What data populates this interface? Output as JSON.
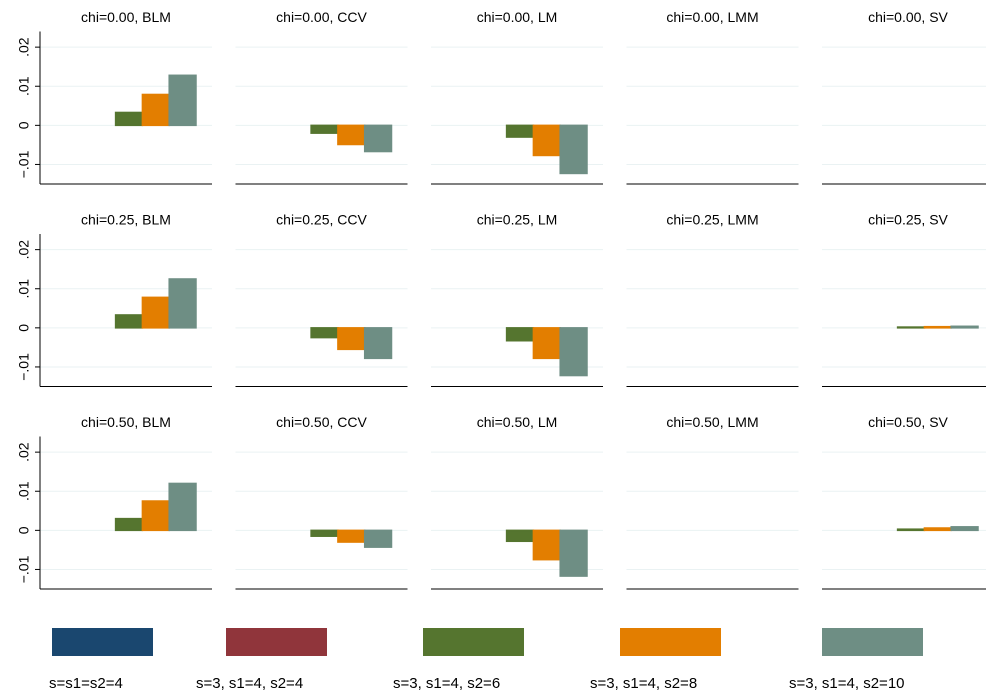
{
  "chart_data": {
    "type": "bar",
    "series": [
      {
        "name": "s=s1=s2=4",
        "color": "#1a476f"
      },
      {
        "name": "s=3, s1=4, s2=4",
        "color": "#90353b"
      },
      {
        "name": "s=3, s1=4, s2=6",
        "color": "#55752f"
      },
      {
        "name": "s=3, s1=4, s2=8",
        "color": "#e37e00"
      },
      {
        "name": "s=3, s1=4, s2=10",
        "color": "#6e8e84"
      }
    ],
    "panels": [
      {
        "title": "chi=0.00, BLM",
        "values": [
          0,
          0,
          0.0033,
          0.0079,
          0.0128
        ]
      },
      {
        "title": "chi=0.00, CCV",
        "values": [
          0,
          0,
          -0.002,
          -0.0049,
          -0.0067
        ]
      },
      {
        "title": "chi=0.00, LM",
        "values": [
          0,
          0,
          -0.003,
          -0.0077,
          -0.0123
        ]
      },
      {
        "title": "chi=0.00, LMM",
        "values": [
          0,
          0,
          0,
          0,
          0
        ]
      },
      {
        "title": "chi=0.00, SV",
        "values": [
          0,
          0,
          0,
          0,
          0
        ]
      },
      {
        "title": "chi=0.25, BLM",
        "values": [
          0,
          0,
          0.0033,
          0.0078,
          0.0125
        ]
      },
      {
        "title": "chi=0.25, CCV",
        "values": [
          0,
          0,
          -0.0025,
          -0.0055,
          -0.0078
        ]
      },
      {
        "title": "chi=0.25, LM",
        "values": [
          0,
          0,
          -0.0033,
          -0.0078,
          -0.0122
        ]
      },
      {
        "title": "chi=0.25, LMM",
        "values": [
          0,
          0,
          0,
          0,
          0
        ]
      },
      {
        "title": "chi=0.25, SV",
        "values": [
          0,
          0,
          0.0002,
          0.0003,
          0.0004
        ]
      },
      {
        "title": "chi=0.50, BLM",
        "values": [
          0,
          0,
          0.003,
          0.0075,
          0.012
        ]
      },
      {
        "title": "chi=0.50, CCV",
        "values": [
          0,
          0,
          -0.0015,
          -0.003,
          -0.0043
        ]
      },
      {
        "title": "chi=0.50, LM",
        "values": [
          0,
          0,
          -0.0028,
          -0.0075,
          -0.0117
        ]
      },
      {
        "title": "chi=0.50, LMM",
        "values": [
          0,
          0,
          0,
          0,
          0
        ]
      },
      {
        "title": "chi=0.50, SV",
        "values": [
          0,
          0,
          0.0003,
          0.0006,
          0.0009
        ]
      }
    ],
    "ylim": [
      -0.015,
      0.024
    ],
    "yticks": [
      {
        "value": -0.01,
        "label": "−.01"
      },
      0,
      {
        "value": 0.01,
        "label": ".01"
      },
      {
        "value": 0.02,
        "label": ".02"
      }
    ],
    "grid": true,
    "legend": "bottom"
  }
}
